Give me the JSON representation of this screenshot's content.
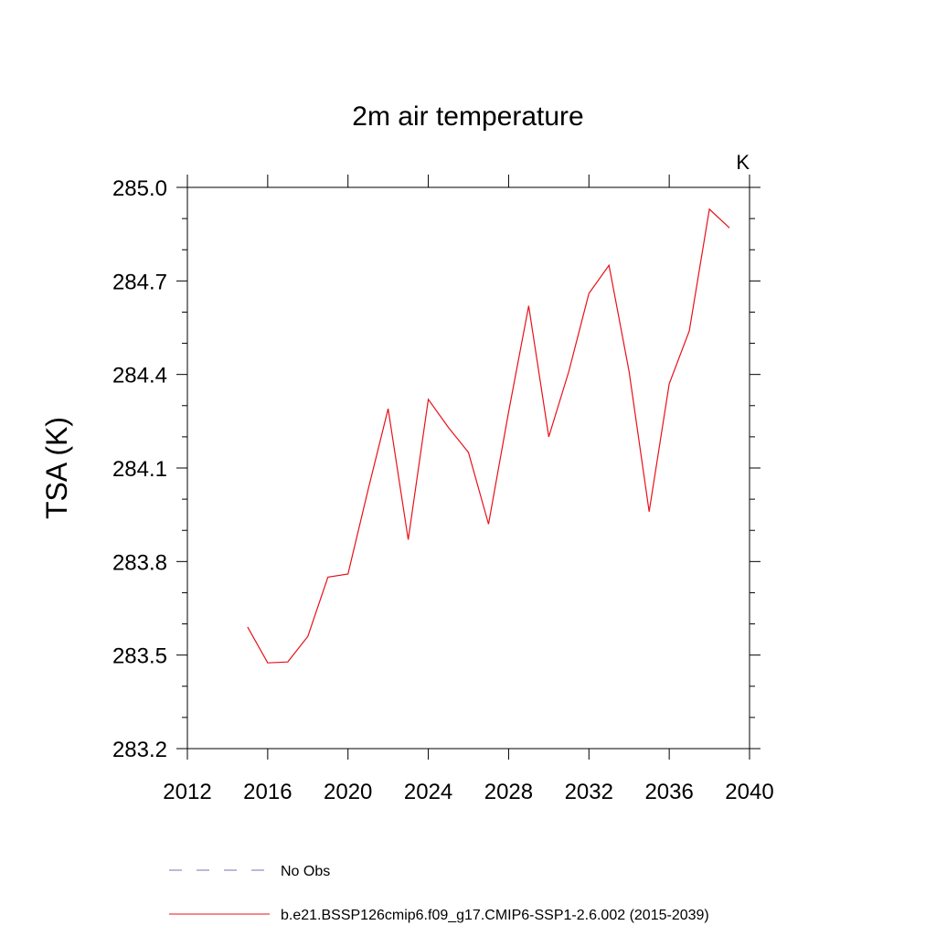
{
  "chart_data": {
    "type": "line",
    "title": "2m air temperature",
    "units_label": "K",
    "xlabel": "",
    "ylabel": "TSA  (K)",
    "xlim": [
      2012,
      2040
    ],
    "ylim": [
      283.2,
      285.0
    ],
    "xticks": [
      "2012",
      "2016",
      "2020",
      "2024",
      "2028",
      "2032",
      "2036",
      "2040"
    ],
    "yticks": [
      "283.2",
      "283.5",
      "283.8",
      "284.1",
      "284.4",
      "284.7",
      "285.0"
    ],
    "grid": false,
    "legend_position": "bottom",
    "series": [
      {
        "name": "No Obs",
        "color": "#7b6fb6",
        "dashed": true,
        "x": [],
        "y": []
      },
      {
        "name": "b.e21.BSSP126cmip6.f09_g17.CMIP6-SSP1-2.6.002 (2015-2039)",
        "color": "#e8101a",
        "dashed": false,
        "x": [
          2015,
          2016,
          2017,
          2018,
          2019,
          2020,
          2021,
          2022,
          2023,
          2024,
          2025,
          2026,
          2027,
          2028,
          2029,
          2030,
          2031,
          2032,
          2033,
          2034,
          2035,
          2036,
          2037,
          2038,
          2039
        ],
        "y": [
          283.59,
          283.475,
          283.478,
          283.56,
          283.75,
          283.76,
          284.03,
          284.29,
          283.87,
          284.32,
          284.23,
          284.15,
          283.92,
          284.28,
          284.62,
          284.2,
          284.41,
          284.66,
          284.75,
          284.41,
          283.96,
          284.37,
          284.54,
          284.93,
          284.87
        ]
      }
    ]
  }
}
